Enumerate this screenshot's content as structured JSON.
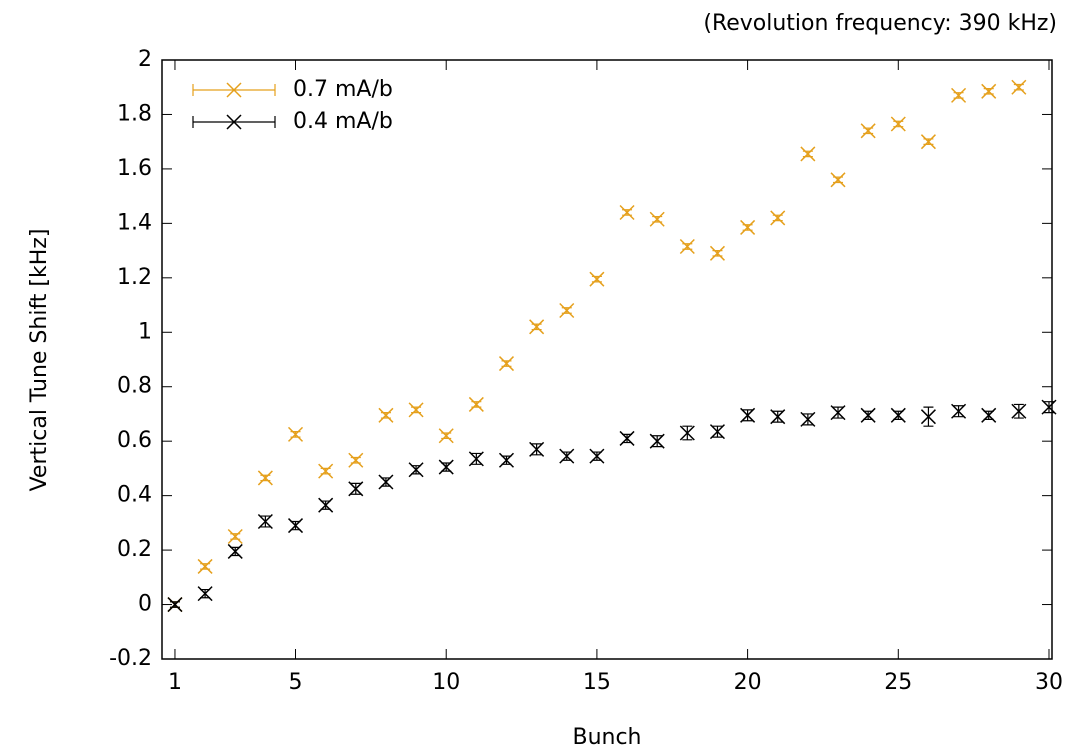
{
  "chart_data": {
    "type": "scatter",
    "annotation": "(Revolution frequency: 390 kHz)",
    "xlabel": "Bunch",
    "ylabel": "Vertical Tune Shift [kHz]",
    "xlim": [
      0.57,
      30.1
    ],
    "ylim": [
      -0.2,
      2
    ],
    "xticks": [
      1,
      5,
      10,
      15,
      20,
      25,
      30
    ],
    "yticks": [
      -0.2,
      0,
      0.2,
      0.4,
      0.6,
      0.8,
      1,
      1.2,
      1.4,
      1.6,
      1.8,
      2
    ],
    "legend": "top-left",
    "grid": false,
    "series": [
      {
        "name": "0.7 mA/b",
        "color": "#e5a01c",
        "x": [
          1,
          2,
          3,
          4,
          5,
          6,
          7,
          8,
          9,
          10,
          11,
          12,
          13,
          14,
          15,
          16,
          17,
          18,
          19,
          20,
          21,
          22,
          23,
          24,
          25,
          26,
          27,
          28,
          29
        ],
        "values": [
          0,
          0.14,
          0.25,
          0.465,
          0.625,
          0.49,
          0.53,
          0.695,
          0.715,
          0.62,
          0.735,
          0.885,
          1.02,
          1.08,
          1.195,
          1.44,
          1.415,
          1.315,
          1.29,
          1.385,
          1.42,
          1.655,
          1.56,
          1.74,
          1.765,
          1.7,
          1.87,
          1.885,
          1.9
        ],
        "errors": [
          0.01,
          0.01,
          0.01,
          0.01,
          0.01,
          0.01,
          0.01,
          0.01,
          0.01,
          0.01,
          0.01,
          0.01,
          0.01,
          0.01,
          0.01,
          0.01,
          0.01,
          0.01,
          0.01,
          0.01,
          0.01,
          0.01,
          0.01,
          0.01,
          0.01,
          0.01,
          0.01,
          0.01,
          0.01
        ]
      },
      {
        "name": "0.4 mA/b",
        "color": "#000000",
        "x": [
          1,
          2,
          3,
          4,
          5,
          6,
          7,
          8,
          9,
          10,
          11,
          12,
          13,
          14,
          15,
          16,
          17,
          18,
          19,
          20,
          21,
          22,
          23,
          24,
          25,
          26,
          27,
          28,
          29,
          30
        ],
        "values": [
          0,
          0.04,
          0.195,
          0.305,
          0.29,
          0.365,
          0.425,
          0.45,
          0.495,
          0.505,
          0.535,
          0.53,
          0.57,
          0.545,
          0.545,
          0.61,
          0.6,
          0.63,
          0.635,
          0.695,
          0.69,
          0.68,
          0.705,
          0.695,
          0.695,
          0.69,
          0.71,
          0.695,
          0.71,
          0.725
        ],
        "errors": [
          0.01,
          0.015,
          0.015,
          0.02,
          0.015,
          0.015,
          0.02,
          0.015,
          0.015,
          0.015,
          0.02,
          0.015,
          0.02,
          0.015,
          0.015,
          0.015,
          0.02,
          0.025,
          0.02,
          0.02,
          0.02,
          0.02,
          0.02,
          0.015,
          0.015,
          0.035,
          0.02,
          0.015,
          0.025,
          0.02
        ]
      }
    ]
  }
}
